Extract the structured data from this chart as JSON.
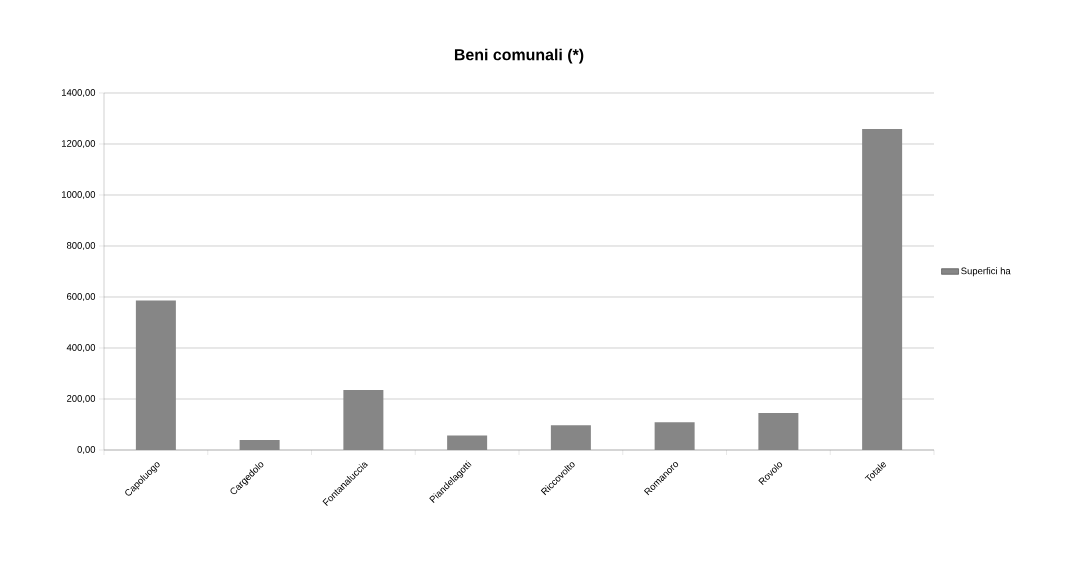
{
  "chart_data": {
    "type": "bar",
    "title": "Beni comunali (*)",
    "categories": [
      "Capoluogo",
      "Cargedolo",
      "Fontanaluccia",
      "Piandelagotti",
      "Riccovolto",
      "Romanoro",
      "Rovolo",
      "Totale"
    ],
    "series": [
      {
        "name": "Superfici ha",
        "color": "#868686",
        "values": [
          586,
          39,
          235,
          57,
          97,
          109,
          145,
          1259
        ]
      }
    ],
    "ylim": [
      0,
      1400
    ],
    "yticks": [
      {
        "value": 0,
        "label": "0,00"
      },
      {
        "value": 200,
        "label": "200,00"
      },
      {
        "value": 400,
        "label": "400,00"
      },
      {
        "value": 600,
        "label": "600,00"
      },
      {
        "value": 800,
        "label": "800,00"
      },
      {
        "value": 1000,
        "label": "1000,00"
      },
      {
        "value": 1200,
        "label": "1200,00"
      },
      {
        "value": 1400,
        "label": "1400,00"
      }
    ],
    "grid": "y",
    "legend": "right"
  }
}
